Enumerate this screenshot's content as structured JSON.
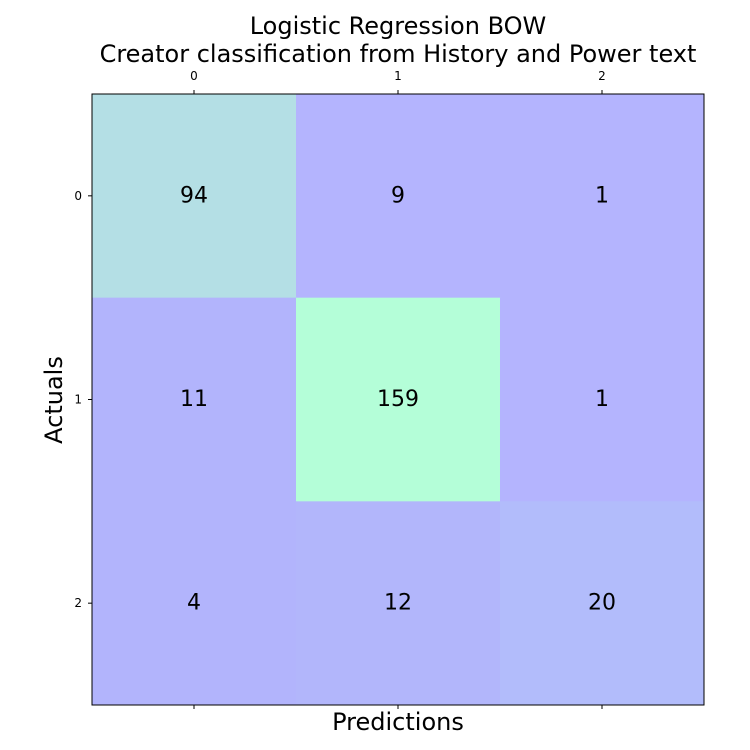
{
  "chart_data": {
    "type": "heatmap",
    "title_line1": "Logistic Regression BOW",
    "title_line2": "Creator classification from History and Power text",
    "xlabel": "Predictions",
    "ylabel": "Actuals",
    "x_ticks": [
      "0",
      "1",
      "2"
    ],
    "y_ticks": [
      "0",
      "1",
      "2"
    ],
    "matrix": [
      [
        94,
        9,
        1
      ],
      [
        11,
        159,
        1
      ],
      [
        4,
        12,
        20
      ]
    ],
    "cell_colors": [
      [
        "#b4dfe5",
        "#b4b4fe",
        "#b4b4fe"
      ],
      [
        "#b2b4fc",
        "#b4fed8",
        "#b4b4fe"
      ],
      [
        "#b2b4fc",
        "#b2b6fb",
        "#b2bcfb"
      ]
    ],
    "x_tick_position": "top",
    "grid": false
  }
}
